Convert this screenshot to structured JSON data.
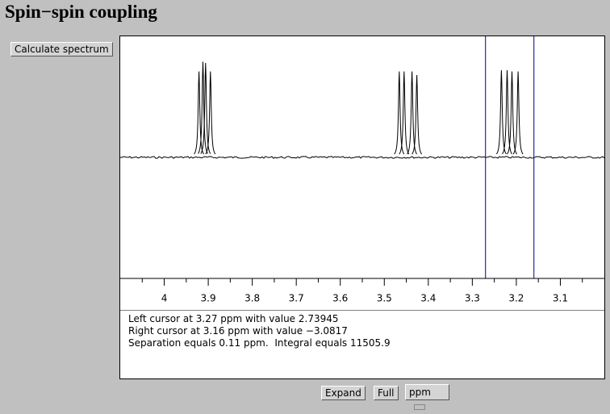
{
  "header": {
    "title": "Spin−spin coupling"
  },
  "buttons": {
    "calculate": "Calculate spectrum",
    "expand": "Expand",
    "full": "Full",
    "units": "ppm"
  },
  "chart_data": {
    "type": "spectrum",
    "xlim": [
      4.1,
      3.0
    ],
    "ylim": [
      -1,
      1
    ],
    "xticks": [
      4,
      3.9,
      3.8,
      3.7,
      3.6,
      3.5,
      3.4,
      3.3,
      3.2,
      3.1
    ],
    "xminorticks": [
      4.05,
      3.95,
      3.85,
      3.75,
      3.65,
      3.55,
      3.45,
      3.35,
      3.25,
      3.15,
      3.05
    ],
    "color": "#000000",
    "cursor_color": "#00008b",
    "cursors": [
      3.27,
      3.16
    ],
    "peaks": {
      "x": [
        3.921,
        3.912,
        3.906,
        3.895,
        3.466,
        3.455,
        3.437,
        3.426,
        3.234,
        3.221,
        3.21,
        3.196
      ],
      "values": [
        0.71,
        0.79,
        0.78,
        0.71,
        0.71,
        0.71,
        0.71,
        0.68,
        0.72,
        0.72,
        0.71,
        0.71
      ]
    }
  },
  "info": [
    "Left cursor at 3.27 ppm with value 2.73945",
    "Right cursor at 3.16 ppm with value −3.0817",
    "Separation equals 0.11 ppm.  Integral equals 11505.9"
  ]
}
